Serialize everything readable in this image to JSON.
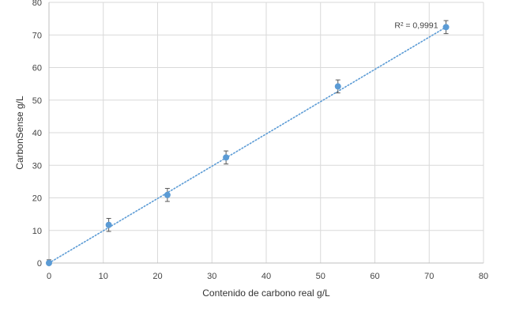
{
  "chart_data": {
    "type": "scatter",
    "xlabel": "Contenido de carbono real g/L",
    "ylabel": "CarbonSense g/L",
    "xlim": [
      0,
      80
    ],
    "ylim": [
      0,
      80
    ],
    "x_ticks": [
      0,
      10,
      20,
      30,
      40,
      50,
      60,
      70,
      80
    ],
    "y_ticks": [
      0,
      10,
      20,
      30,
      40,
      50,
      60,
      70,
      80
    ],
    "grid": true,
    "legend": "none",
    "series": [
      {
        "color": "#5b9bd5",
        "points": [
          {
            "x": 0.0,
            "y": 0.0,
            "err": 1.0
          },
          {
            "x": 11.0,
            "y": 11.7,
            "err": 2.0
          },
          {
            "x": 21.8,
            "y": 20.9,
            "err": 2.0
          },
          {
            "x": 32.6,
            "y": 32.4,
            "err": 2.0
          },
          {
            "x": 53.2,
            "y": 54.2,
            "err": 2.0
          },
          {
            "x": 73.1,
            "y": 72.4,
            "err": 2.0
          }
        ]
      }
    ],
    "trendline": {
      "type": "linear",
      "style": "dotted",
      "color": "#5b9bd5",
      "from": [
        0,
        0
      ],
      "to": [
        73.1,
        72.4
      ]
    },
    "annotation": {
      "text": "R² = 0,9991"
    }
  }
}
